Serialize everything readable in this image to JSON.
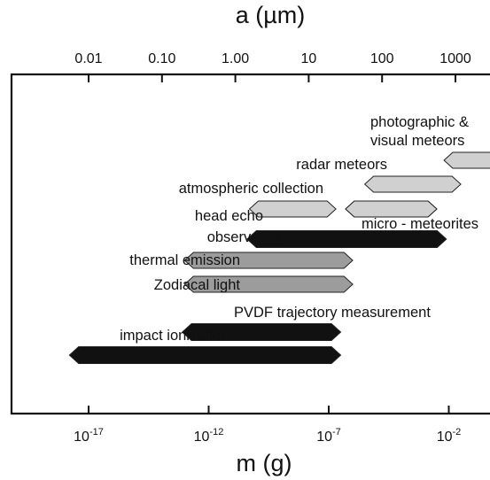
{
  "chart_data": {
    "type": "range-bar",
    "top_axis": {
      "title": "a (µm)",
      "tick_labels": [
        "0.01",
        "0.10",
        "1.00",
        "10",
        "100",
        "1000"
      ],
      "tick_values_um": [
        0.01,
        0.1,
        1,
        10,
        100,
        1000
      ]
    },
    "bottom_axis": {
      "title": "m (g)",
      "scale": "log",
      "tick_bases": [
        "10",
        "10",
        "10",
        "10"
      ],
      "tick_exponents": [
        "-17",
        "-12",
        "-7",
        "-2"
      ],
      "tick_log_values": [
        -17,
        -12,
        -7,
        -2
      ],
      "range_log": [
        -20,
        0
      ]
    },
    "grid": false,
    "series": [
      {
        "label": "photographic &",
        "label2": "visual meteors",
        "fill": "#d0d0d0",
        "log_mass": [
          -2.2,
          3.0
        ]
      },
      {
        "label": "radar meteors",
        "fill": "#d0d0d0",
        "log_mass": [
          -5.5,
          -1.5
        ]
      },
      {
        "label": "atmospheric collection",
        "fill": "#d0d0d0",
        "log_mass": [
          -10.3,
          -6.7
        ]
      },
      {
        "label": "",
        "fill": "#d0d0d0",
        "log_mass": [
          -6.3,
          -2.5
        ]
      },
      {
        "label": "micro - meteorites",
        "fill": "#d0d0d0",
        "log_mass": [
          -6.3,
          -2.5
        ]
      },
      {
        "label": "head echo",
        "label2": "observation",
        "fill": "#111111",
        "log_mass": [
          -10.4,
          -2.1
        ]
      },
      {
        "label": "thermal emission",
        "fill": "#9c9c9c",
        "log_mass": [
          -13.0,
          -6.0
        ]
      },
      {
        "label": "Zodiacal light",
        "fill": "#9c9c9c",
        "log_mass": [
          -13.0,
          -6.0
        ]
      },
      {
        "label": "PVDF trajectory measurement",
        "fill": "#111111",
        "log_mass": [
          -13.1,
          -6.5
        ]
      },
      {
        "label": "impact ionization",
        "fill": "#111111",
        "log_mass": [
          -17.8,
          -6.5
        ]
      }
    ]
  }
}
